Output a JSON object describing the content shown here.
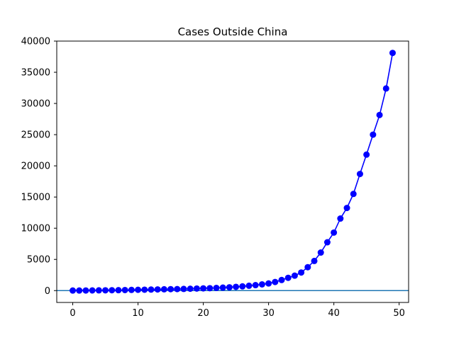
{
  "chart_data": {
    "type": "line",
    "title": "Cases Outside China",
    "xlabel": "",
    "ylabel": "",
    "xlim": [
      -2.45,
      51.45
    ],
    "ylim": [
      -1900,
      40000
    ],
    "x_ticks": [
      0,
      10,
      20,
      30,
      40,
      50
    ],
    "y_ticks": [
      0,
      5000,
      10000,
      15000,
      20000,
      25000,
      30000,
      35000,
      40000
    ],
    "grid": false,
    "legend": "none",
    "baseline": {
      "y": 0,
      "color": "#1f77b4"
    },
    "series": [
      {
        "color": "#0000ff",
        "marker": "circle",
        "x": [
          0,
          1,
          2,
          3,
          4,
          5,
          6,
          7,
          8,
          9,
          10,
          11,
          12,
          13,
          14,
          15,
          16,
          17,
          18,
          19,
          20,
          21,
          22,
          23,
          24,
          25,
          26,
          27,
          28,
          29,
          30,
          31,
          32,
          33,
          34,
          35,
          36,
          37,
          38,
          39,
          40,
          41,
          42,
          43,
          44,
          45,
          46,
          47,
          48,
          49
        ],
        "y": [
          10,
          15,
          20,
          30,
          40,
          50,
          60,
          70,
          90,
          110,
          130,
          150,
          170,
          190,
          210,
          230,
          250,
          270,
          300,
          330,
          360,
          390,
          430,
          480,
          530,
          600,
          680,
          780,
          880,
          1000,
          1150,
          1380,
          1700,
          2050,
          2400,
          2900,
          3750,
          4750,
          6100,
          7750,
          9300,
          11550,
          13250,
          15500,
          18700,
          21800,
          25000,
          28150,
          32400,
          38100
        ]
      }
    ]
  }
}
